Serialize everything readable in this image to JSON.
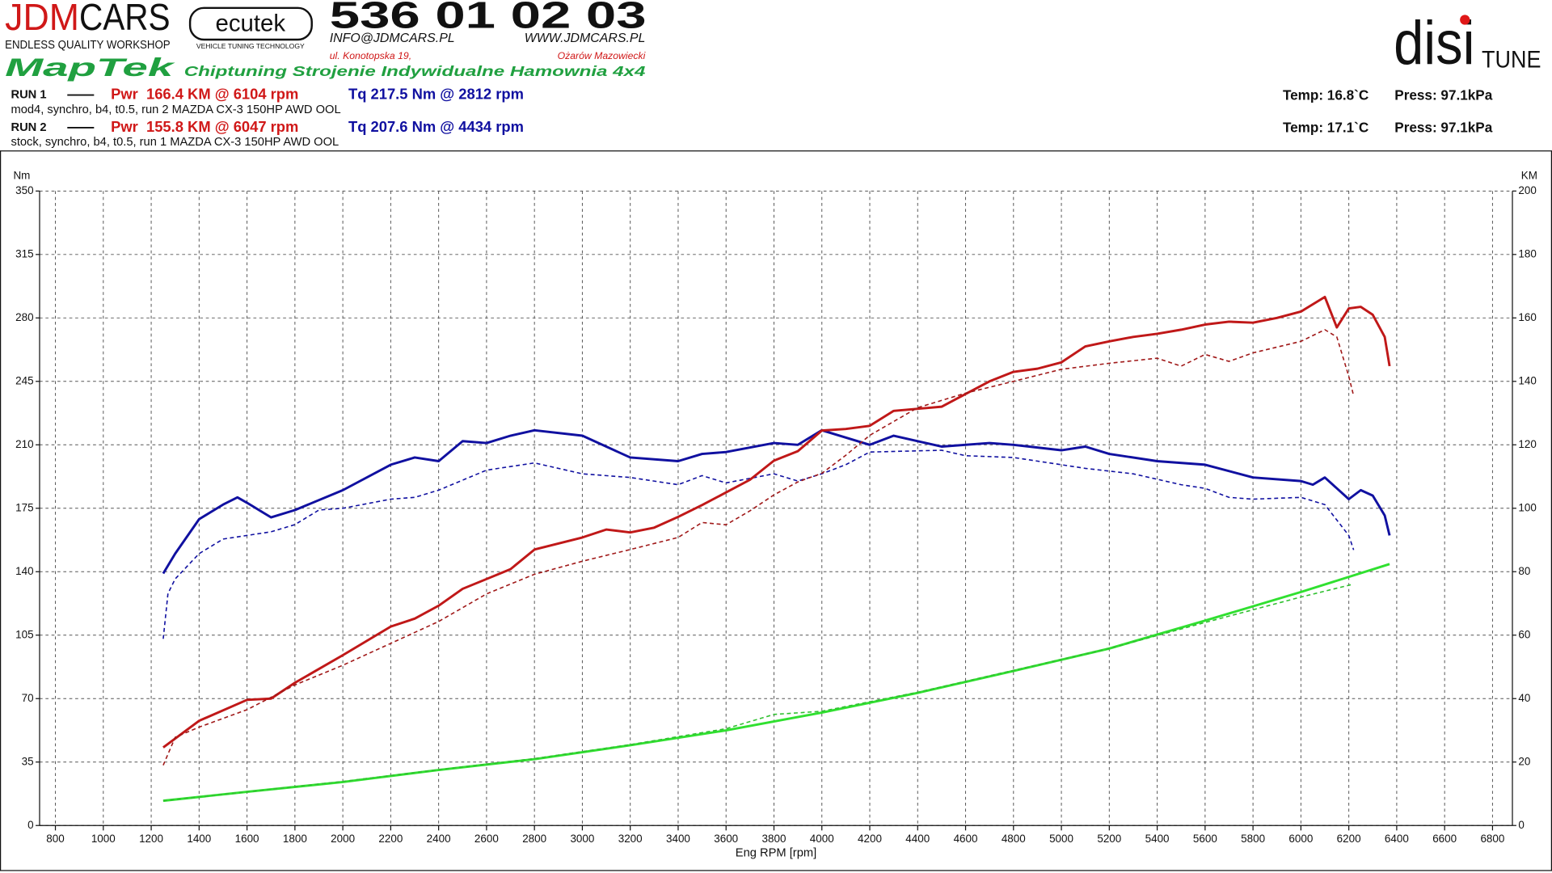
{
  "header": {
    "brand_red": "JDM",
    "brand_black": "CARS",
    "brand_sub": "ENDLESS QUALITY WORKSHOP",
    "ecutek": "ecutek",
    "ecutek_sub": "VEHICLE TUNING TECHNOLOGY",
    "phone": "536 01 02 03",
    "email": "INFO@JDMCARS.PL",
    "web": "WWW.JDMCARS.PL",
    "street": "ul. Konotopska 19,",
    "city": "Ożarów Mazowiecki",
    "maptek": "MapTek",
    "slogan": "Chiptuning Strojenie Indywidualne Hamownia 4x4",
    "disi": "disi",
    "tune": "TUNE"
  },
  "chart_data": {
    "type": "line",
    "runs": [
      {
        "label": "RUN 1",
        "power": "Pwr  166.4 KM @ 6104 rpm",
        "torque": "Tq 217.5 Nm @ 2812 rpm",
        "description": "mod4, synchro, b4, t0.5, run 2 MAZDA CX-3 150HP AWD OOL",
        "temp": "Temp: 16.8`C",
        "press": "Press: 97.1kPa"
      },
      {
        "label": "RUN 2",
        "power": "Pwr  155.8 KM @ 6047 rpm",
        "torque": "Tq 207.6 Nm @ 4434 rpm",
        "description": "stock, synchro, b4, t0.5, run 1 MAZDA CX-3 150HP AWD OOL",
        "temp": "Temp: 17.1`C",
        "press": "Press: 97.1kPa"
      }
    ],
    "y_label": "Nm",
    "y2_label": "KM",
    "x_label": "Eng RPM [rpm]",
    "xlim": [
      734,
      6883
    ],
    "xticks": [
      800,
      1000,
      1200,
      1400,
      1600,
      1800,
      2000,
      2200,
      2400,
      2600,
      2800,
      3000,
      3200,
      3400,
      3600,
      3800,
      4000,
      4200,
      4400,
      4600,
      4800,
      5000,
      5200,
      5400,
      5600,
      5800,
      6000,
      6200,
      6400,
      6600,
      6800
    ],
    "ylim": [
      0,
      350
    ],
    "yticks": [
      0,
      35,
      70,
      105,
      140,
      175,
      210,
      245,
      280,
      315,
      350
    ],
    "y2lim": [
      0,
      200
    ],
    "y2ticks": [
      0,
      20,
      40,
      60,
      80,
      100,
      120,
      140,
      160,
      180,
      200
    ],
    "grid": true,
    "series": [
      {
        "color": "#1010a0",
        "dashed": false,
        "axis": "y",
        "x": [
          1250,
          1300,
          1400,
          1500,
          1560,
          1600,
          1700,
          1800,
          2000,
          2200,
          2300,
          2400,
          2500,
          2600,
          2700,
          2800,
          3000,
          3200,
          3400,
          3500,
          3600,
          3800,
          3900,
          4000,
          4200,
          4300,
          4500,
          4700,
          4800,
          5000,
          5100,
          5200,
          5400,
          5600,
          5800,
          6000,
          6050,
          6100,
          6200,
          6250,
          6300,
          6350,
          6370
        ],
        "values": [
          139,
          150,
          169,
          177,
          181,
          178,
          170,
          174,
          185,
          199,
          203,
          201,
          212,
          211,
          215,
          218,
          215,
          203,
          201,
          205,
          206,
          211,
          210,
          218,
          210,
          215,
          209,
          211,
          210,
          207,
          209,
          205,
          201,
          199,
          192,
          190,
          188,
          192,
          180,
          185,
          182,
          171,
          160
        ]
      },
      {
        "color": "#1010a0",
        "dashed": true,
        "axis": "y",
        "x": [
          1250,
          1270,
          1300,
          1400,
          1500,
          1700,
          1800,
          1900,
          2000,
          2200,
          2300,
          2400,
          2600,
          2800,
          3000,
          3200,
          3400,
          3500,
          3600,
          3800,
          3900,
          4000,
          4100,
          4200,
          4500,
          4600,
          4800,
          5000,
          5100,
          5300,
          5500,
          5600,
          5700,
          5800,
          6000,
          6100,
          6200,
          6220
        ],
        "values": [
          103,
          128,
          136,
          150,
          158,
          162,
          166,
          174,
          175,
          180,
          181,
          185,
          196,
          200,
          194,
          192,
          188,
          193,
          189,
          194,
          190,
          194,
          199,
          206,
          207,
          204,
          203,
          199,
          197,
          194,
          188,
          186,
          181,
          180,
          181,
          177,
          160,
          152
        ]
      },
      {
        "color": "#c01818",
        "dashed": false,
        "axis": "y2",
        "x": [
          1250,
          1400,
          1600,
          1700,
          1800,
          2000,
          2200,
          2300,
          2400,
          2500,
          2600,
          2700,
          2800,
          3000,
          3100,
          3200,
          3300,
          3400,
          3500,
          3600,
          3700,
          3800,
          3900,
          4000,
          4100,
          4200,
          4300,
          4500,
          4600,
          4700,
          4800,
          4900,
          5000,
          5100,
          5200,
          5300,
          5400,
          5500,
          5600,
          5700,
          5800,
          5900,
          6000,
          6100,
          6150,
          6200,
          6250,
          6300,
          6350,
          6370
        ],
        "values": [
          24.6,
          33,
          39.6,
          40,
          45,
          53.7,
          62.7,
          65.2,
          69.3,
          74.6,
          77.7,
          80.8,
          87,
          90.8,
          93.3,
          92.4,
          93.9,
          97.3,
          101,
          105,
          109,
          115,
          118,
          124.5,
          125,
          126,
          130.7,
          132,
          136,
          140,
          143,
          144,
          146,
          151,
          152.6,
          154,
          155,
          156.3,
          157.9,
          158.8,
          158.5,
          160,
          162,
          166.6,
          157,
          163,
          163.5,
          161,
          154,
          144.8
        ]
      },
      {
        "color": "#a01818",
        "dashed": true,
        "axis": "y2",
        "x": [
          1250,
          1300,
          1400,
          1600,
          1800,
          2000,
          2200,
          2400,
          2600,
          2800,
          3000,
          3200,
          3400,
          3500,
          3600,
          3700,
          3800,
          3900,
          4000,
          4100,
          4200,
          4400,
          4600,
          4800,
          5000,
          5200,
          5400,
          5500,
          5600,
          5700,
          5800,
          6000,
          6100,
          6150,
          6200,
          6220
        ],
        "values": [
          19,
          27.8,
          31,
          36.5,
          44.3,
          50.5,
          57.4,
          64.3,
          73,
          79.2,
          83.3,
          87,
          90.8,
          95.5,
          94.8,
          99.2,
          104.2,
          108.3,
          111,
          116.7,
          123,
          131.7,
          136.3,
          140,
          143.8,
          145.7,
          147.3,
          144.8,
          148.5,
          146.3,
          149,
          152.6,
          156.3,
          154,
          141.6,
          135.4
        ]
      },
      {
        "color": "#30e030",
        "dashed": false,
        "axis": "y2",
        "x": [
          1250,
          1600,
          2000,
          2400,
          2800,
          3200,
          3600,
          4000,
          4400,
          4800,
          5200,
          5600,
          6000,
          6370
        ],
        "values": [
          7.8,
          10.6,
          13.7,
          17.5,
          20.9,
          25.3,
          30,
          35.6,
          41.8,
          48.7,
          55.8,
          64.6,
          73.6,
          82.4
        ]
      },
      {
        "color": "#30c030",
        "dashed": true,
        "axis": "y2",
        "x": [
          1250,
          1600,
          2000,
          2400,
          2800,
          3200,
          3600,
          3800,
          4000,
          4400,
          4800,
          5200,
          5600,
          6000,
          6220
        ],
        "values": [
          7.8,
          10.6,
          13.9,
          17.6,
          21.1,
          25.5,
          30.5,
          35,
          36,
          42,
          48.9,
          55.8,
          64,
          72,
          76.1
        ]
      }
    ]
  }
}
